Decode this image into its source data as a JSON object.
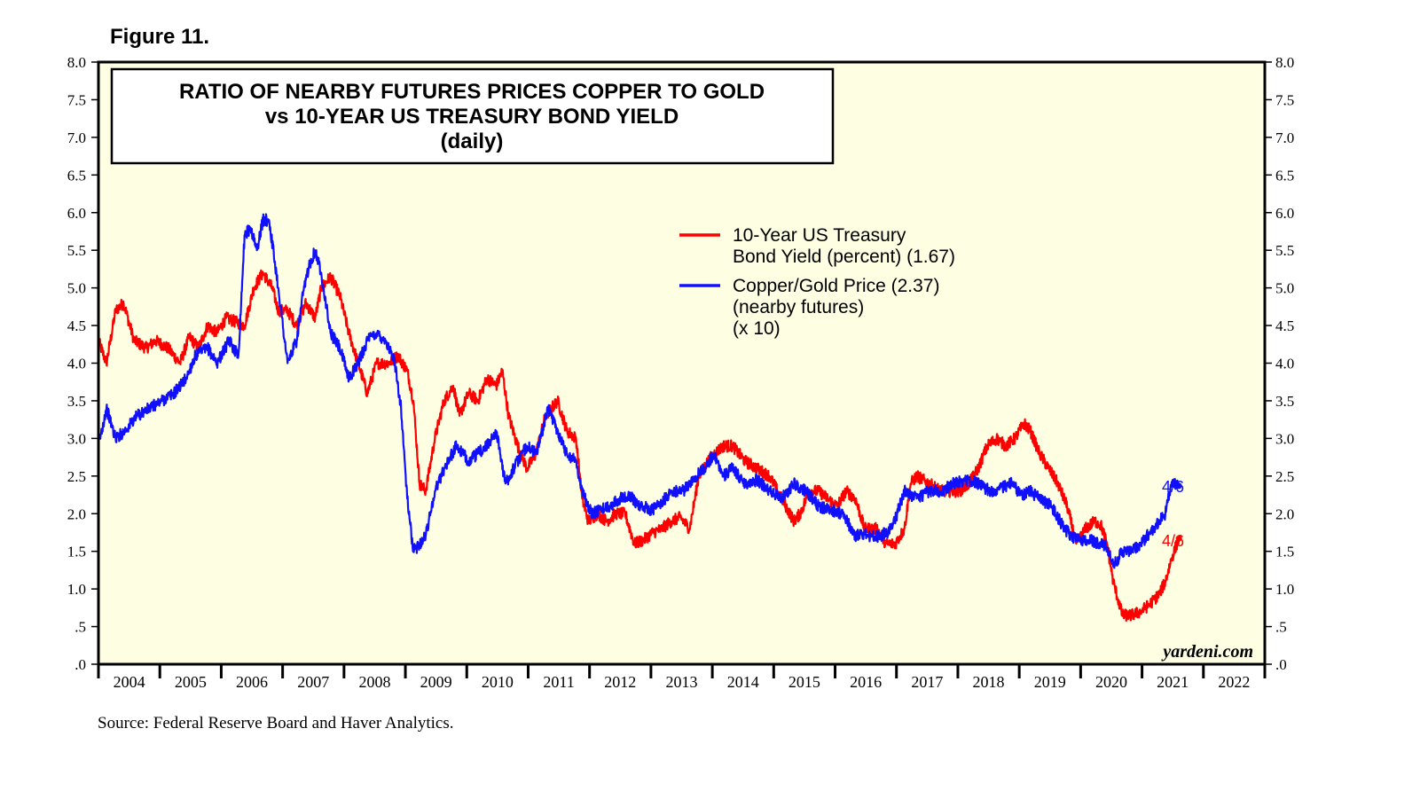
{
  "figure_label": "Figure 11.",
  "source": "Source: Federal Reserve Board and Haver Analytics.",
  "watermark": "yardeni.com",
  "colors": {
    "plot_background": "#fefee2",
    "yield": "#ff0000",
    "ratio": "#1010ff",
    "frame": "#000000"
  },
  "chart_data": {
    "type": "line",
    "title": [
      "RATIO OF NEARBY FUTURES PRICES COPPER TO GOLD",
      "vs 10-YEAR US TREASURY BOND YIELD",
      "(daily)"
    ],
    "xlabel": "",
    "ylabel": "",
    "xlim": [
      2003.67,
      2022.67
    ],
    "ylim": [
      0,
      8
    ],
    "y_ticks": [
      {
        "value": 0.0,
        "label": ".0"
      },
      {
        "value": 0.5,
        "label": ".5"
      },
      {
        "value": 1.0,
        "label": "1.0"
      },
      {
        "value": 1.5,
        "label": "1.5"
      },
      {
        "value": 2.0,
        "label": "2.0"
      },
      {
        "value": 2.5,
        "label": "2.5"
      },
      {
        "value": 3.0,
        "label": "3.0"
      },
      {
        "value": 3.5,
        "label": "3.5"
      },
      {
        "value": 4.0,
        "label": "4.0"
      },
      {
        "value": 4.5,
        "label": "4.5"
      },
      {
        "value": 5.0,
        "label": "5.0"
      },
      {
        "value": 5.5,
        "label": "5.5"
      },
      {
        "value": 6.0,
        "label": "6.0"
      },
      {
        "value": 6.5,
        "label": "6.5"
      },
      {
        "value": 7.0,
        "label": "7.0"
      },
      {
        "value": 7.5,
        "label": "7.5"
      },
      {
        "value": 8.0,
        "label": "8.0"
      }
    ],
    "categories": [
      "2004",
      "2005",
      "2006",
      "2007",
      "2008",
      "2009",
      "2010",
      "2011",
      "2012",
      "2013",
      "2014",
      "2015",
      "2016",
      "2017",
      "2018",
      "2019",
      "2020",
      "2021",
      "2022"
    ],
    "legend_placement": "top-right",
    "series": [
      {
        "name": "10-Year US Treasury",
        "legend_lines": [
          "10-Year US Treasury",
          "Bond Yield (percent) (1.67)"
        ],
        "end_label": "4/6",
        "color": "#ff0000",
        "x": [
          2003.67,
          2003.8,
          2003.95,
          2004.08,
          2004.25,
          2004.45,
          2004.6,
          2004.8,
          2005.0,
          2005.15,
          2005.3,
          2005.45,
          2005.6,
          2005.75,
          2005.9,
          2006.05,
          2006.2,
          2006.35,
          2006.5,
          2006.6,
          2006.75,
          2006.9,
          2007.05,
          2007.2,
          2007.3,
          2007.45,
          2007.6,
          2007.75,
          2007.9,
          2008.05,
          2008.2,
          2008.4,
          2008.55,
          2008.7,
          2008.8,
          2008.9,
          2009.0,
          2009.15,
          2009.3,
          2009.45,
          2009.55,
          2009.7,
          2009.85,
          2010.0,
          2010.15,
          2010.25,
          2010.35,
          2010.5,
          2010.65,
          2010.8,
          2010.95,
          2011.05,
          2011.15,
          2011.3,
          2011.45,
          2011.55,
          2011.65,
          2011.8,
          2011.95,
          2012.1,
          2012.25,
          2012.4,
          2012.55,
          2012.7,
          2012.85,
          2013.0,
          2013.15,
          2013.3,
          2013.45,
          2013.6,
          2013.7,
          2013.85,
          2014.0,
          2014.2,
          2014.4,
          2014.6,
          2014.8,
          2015.0,
          2015.1,
          2015.25,
          2015.4,
          2015.55,
          2015.7,
          2015.85,
          2016.0,
          2016.15,
          2016.35,
          2016.5,
          2016.65,
          2016.8,
          2016.9,
          2017.0,
          2017.2,
          2017.4,
          2017.55,
          2017.7,
          2017.85,
          2018.0,
          2018.15,
          2018.3,
          2018.45,
          2018.6,
          2018.75,
          2018.85,
          2019.0,
          2019.15,
          2019.3,
          2019.45,
          2019.6,
          2019.75,
          2019.9,
          2020.0,
          2020.1,
          2020.2,
          2020.35,
          2020.5,
          2020.65,
          2020.8,
          2020.95,
          2021.05,
          2021.15,
          2021.27
        ],
        "values": [
          4.3,
          4.0,
          4.7,
          4.8,
          4.3,
          4.2,
          4.3,
          4.2,
          4.0,
          4.35,
          4.2,
          4.5,
          4.4,
          4.6,
          4.55,
          4.5,
          5.0,
          5.2,
          5.0,
          4.7,
          4.7,
          4.5,
          4.8,
          4.6,
          5.0,
          5.15,
          4.9,
          4.4,
          4.0,
          3.6,
          4.0,
          4.0,
          4.1,
          3.9,
          3.5,
          2.4,
          2.3,
          3.0,
          3.5,
          3.7,
          3.3,
          3.6,
          3.5,
          3.8,
          3.7,
          3.9,
          3.3,
          2.9,
          2.6,
          2.8,
          3.3,
          3.4,
          3.5,
          3.1,
          3.0,
          2.2,
          1.9,
          2.0,
          1.9,
          2.0,
          2.0,
          1.6,
          1.65,
          1.75,
          1.8,
          1.9,
          1.95,
          1.8,
          2.5,
          2.7,
          2.8,
          2.9,
          2.9,
          2.7,
          2.6,
          2.5,
          2.2,
          1.9,
          2.0,
          2.3,
          2.3,
          2.2,
          2.1,
          2.3,
          2.2,
          1.8,
          1.8,
          1.6,
          1.6,
          1.8,
          2.4,
          2.5,
          2.4,
          2.3,
          2.3,
          2.3,
          2.4,
          2.6,
          2.9,
          3.0,
          2.9,
          3.0,
          3.2,
          3.1,
          2.8,
          2.6,
          2.4,
          2.1,
          1.6,
          1.8,
          1.9,
          1.85,
          1.6,
          1.1,
          0.65,
          0.65,
          0.7,
          0.8,
          0.93,
          1.1,
          1.4,
          1.67
        ]
      },
      {
        "name": "Copper/Gold Price",
        "legend_lines": [
          "Copper/Gold Price (2.37)",
          "(nearby futures)",
          "(x 10)"
        ],
        "end_label": "4/6",
        "color": "#1010ff",
        "x": [
          2003.67,
          2003.8,
          2003.95,
          2004.1,
          2004.3,
          2004.5,
          2004.7,
          2004.9,
          2005.1,
          2005.25,
          2005.45,
          2005.6,
          2005.8,
          2005.95,
          2006.05,
          2006.15,
          2006.25,
          2006.35,
          2006.45,
          2006.6,
          2006.75,
          2006.9,
          2007.0,
          2007.1,
          2007.2,
          2007.3,
          2007.45,
          2007.6,
          2007.75,
          2007.9,
          2008.05,
          2008.2,
          2008.35,
          2008.5,
          2008.6,
          2008.7,
          2008.8,
          2008.9,
          2009.0,
          2009.15,
          2009.3,
          2009.5,
          2009.7,
          2009.85,
          2010.0,
          2010.15,
          2010.3,
          2010.5,
          2010.65,
          2010.8,
          2011.0,
          2011.15,
          2011.3,
          2011.45,
          2011.55,
          2011.7,
          2011.85,
          2012.0,
          2012.15,
          2012.3,
          2012.5,
          2012.7,
          2012.85,
          2013.0,
          2013.2,
          2013.4,
          2013.55,
          2013.7,
          2013.85,
          2014.0,
          2014.2,
          2014.4,
          2014.6,
          2014.8,
          2015.0,
          2015.2,
          2015.4,
          2015.6,
          2015.8,
          2016.0,
          2016.1,
          2016.2,
          2016.4,
          2016.6,
          2016.8,
          2017.0,
          2017.2,
          2017.4,
          2017.6,
          2017.8,
          2018.0,
          2018.2,
          2018.4,
          2018.55,
          2018.7,
          2018.85,
          2019.0,
          2019.2,
          2019.4,
          2019.6,
          2019.8,
          2020.0,
          2020.1,
          2020.2,
          2020.35,
          2020.5,
          2020.65,
          2020.8,
          2020.95,
          2021.05,
          2021.15,
          2021.27
        ],
        "values": [
          2.9,
          3.4,
          3.0,
          3.1,
          3.3,
          3.4,
          3.5,
          3.6,
          3.8,
          4.1,
          4.2,
          4.0,
          4.3,
          4.1,
          5.7,
          5.8,
          5.5,
          5.9,
          5.9,
          5.0,
          4.0,
          4.3,
          4.9,
          5.3,
          5.5,
          5.2,
          4.4,
          4.2,
          3.8,
          4.0,
          4.3,
          4.4,
          4.3,
          4.0,
          3.4,
          2.2,
          1.5,
          1.6,
          1.7,
          2.3,
          2.6,
          2.9,
          2.7,
          2.8,
          2.9,
          3.1,
          2.4,
          2.7,
          2.9,
          2.8,
          3.4,
          3.1,
          2.8,
          2.7,
          2.3,
          2.0,
          2.05,
          2.1,
          2.2,
          2.25,
          2.1,
          2.05,
          2.15,
          2.3,
          2.3,
          2.5,
          2.6,
          2.8,
          2.5,
          2.6,
          2.4,
          2.45,
          2.3,
          2.2,
          2.4,
          2.3,
          2.1,
          2.05,
          2.0,
          1.7,
          1.75,
          1.7,
          1.7,
          1.8,
          2.3,
          2.2,
          2.3,
          2.3,
          2.4,
          2.45,
          2.4,
          2.3,
          2.35,
          2.4,
          2.25,
          2.3,
          2.2,
          2.1,
          1.8,
          1.65,
          1.65,
          1.6,
          1.55,
          1.3,
          1.5,
          1.5,
          1.6,
          1.75,
          1.9,
          2.0,
          2.4,
          2.37
        ]
      }
    ]
  }
}
